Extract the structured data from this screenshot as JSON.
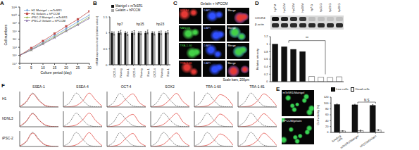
{
  "chart_data": [
    {
      "panel": "A",
      "type": "line",
      "x_label": "Culture period (day)",
      "y_label": "Cell numbers",
      "log": "y",
      "legend": "upper left",
      "x": [
        0,
        5,
        10,
        15,
        20,
        25,
        30
      ],
      "xlim": [
        0,
        30
      ],
      "xticks": [
        0,
        5,
        10,
        15,
        20,
        25,
        30
      ],
      "ylim": [
        10000,
        100000000000
      ],
      "yticks": [
        {
          "value": 10000,
          "label": "10⁴"
        },
        {
          "value": 100000,
          "label": "10⁵"
        },
        {
          "value": 1000000,
          "label": "10⁶"
        },
        {
          "value": 10000000,
          "label": "10⁷"
        },
        {
          "value": 100000000,
          "label": "10⁸"
        },
        {
          "value": 1000000000,
          "label": "10⁹"
        },
        {
          "value": 10000000000,
          "label": "10¹⁰"
        },
        {
          "value": 100000000000,
          "label": "10¹¹"
        }
      ],
      "series": [
        {
          "name": "H1 Matrigel + mTeSR1",
          "color": "#6f9fd8",
          "marker": "diamond",
          "values": [
            100000,
            600000,
            4000000,
            30000000,
            200000000,
            1500000000,
            10000000000
          ]
        },
        {
          "name": "H1 Gelatin + hPCCM",
          "color": "#c0504d",
          "marker": "square",
          "values": [
            100000,
            800000,
            6000000,
            50000000,
            400000000,
            3000000000,
            30000000000
          ]
        },
        {
          "name": "iPSC-2 Matrigel + mTeSR1",
          "color": "#9bbb59",
          "marker": "triangle",
          "values": [
            100000,
            500000,
            3000000,
            20000000,
            120000000,
            800000000,
            6000000000
          ]
        },
        {
          "name": "iPSC-2 Gelatin + hPCCM",
          "color": "#8064a2",
          "marker": "cross",
          "values": [
            100000,
            450000,
            2500000,
            15000000,
            100000000,
            600000000,
            4000000000
          ]
        }
      ]
    },
    {
      "panel": "B",
      "type": "bar",
      "y_label": "mRNA expression level (relative values)",
      "legend": "upper left",
      "categories": [
        "OCT-4",
        "Nanog",
        "Rex-1",
        "OCT-4",
        "Nanog",
        "Rex-1",
        "OCT-4",
        "Nanog",
        "Rex-1"
      ],
      "group_labels": [
        "hp7",
        "hp15",
        "hp23"
      ],
      "ylim": [
        0,
        1.5
      ],
      "yticks": [
        0,
        0.5,
        1,
        1.5
      ],
      "series": [
        {
          "name": "Matrigel + mTeSR1",
          "color": "#111111",
          "values": [
            1,
            1,
            1,
            1,
            1,
            1,
            1,
            1,
            1
          ],
          "errors": [
            0.04,
            0.05,
            0.04,
            0.05,
            0.04,
            0.05,
            0.04,
            0.05,
            0.04
          ]
        },
        {
          "name": "Gelatin + hPCCM",
          "color": "#a6a6a6",
          "values": [
            0.98,
            1.02,
            0.97,
            1.01,
            0.99,
            1.03,
            0.98,
            1,
            1.02
          ],
          "errors": [
            0.05,
            0.06,
            0.05,
            0.06,
            0.05,
            0.06,
            0.05,
            0.06,
            0.05
          ]
        }
      ]
    },
    {
      "panel": "D",
      "type": "bar",
      "y_label": "Relative intensity",
      "tick_labels": "y",
      "categories": [
        "hp7 M",
        "hp15 M",
        "hp23 M",
        "hp30 M",
        "hp7 G",
        "hp15 G",
        "hp23 G",
        "hp30 G"
      ],
      "values": [
        1,
        0.93,
        0.86,
        0.8,
        0.14,
        0.12,
        0.11,
        0.13
      ],
      "colors": [
        "#111111",
        "#111111",
        "#111111",
        "#111111",
        "#ffffff",
        "#ffffff",
        "#ffffff",
        "#ffffff"
      ],
      "ylim": [
        0,
        1.2
      ],
      "yticks": [
        0,
        0.2,
        0.4,
        0.6,
        0.8,
        1,
        1.2
      ],
      "annotations": [
        "**"
      ]
    },
    {
      "panel": "E",
      "type": "bar",
      "y_label": "Cell viability (%)",
      "legend": "upper left",
      "categories": [
        "Seeding cells",
        "mTeSR1/Matrigel",
        "hPCCM/Gelatin"
      ],
      "ylim": [
        0,
        120
      ],
      "yticks": [
        0,
        20,
        40,
        60,
        80,
        100,
        120
      ],
      "annotations": [
        "N.S"
      ],
      "series": [
        {
          "name": "Live cells",
          "color": "#111111",
          "values": [
            95,
            94,
            92
          ],
          "errors": [
            2,
            2,
            3
          ]
        },
        {
          "name": "Dead cells",
          "color": "#ffffff",
          "values": [
            5,
            6,
            8
          ],
          "errors": [
            1,
            2,
            2
          ]
        }
      ]
    },
    {
      "panel": "F",
      "type": "histogram_grid",
      "tick_labels": false,
      "columns": [
        "SSEA-1",
        "SSEA-4",
        "OCT-4",
        "SOX2",
        "TRA-1-60",
        "TRA-1-81"
      ],
      "x": [
        0,
        1,
        2,
        3,
        4,
        5,
        6
      ],
      "xlim": [
        0,
        6
      ],
      "ylim": [
        0,
        100
      ],
      "series": [
        {
          "color": "#555555",
          "line_style": "dashed"
        },
        {
          "color": "#e0302a",
          "line_style": "solid"
        }
      ],
      "rows": [
        {
          "label": "H1",
          "cells": [
            [
              [
                2,
                30,
                90,
                45,
                8,
                1,
                0
              ],
              [
                3,
                35,
                85,
                40,
                10,
                2,
                0
              ]
            ],
            [
              [
                2,
                30,
                90,
                45,
                8,
                1,
                0
              ],
              [
                0,
                2,
                10,
                40,
                90,
                45,
                5
              ]
            ],
            [
              [
                2,
                28,
                88,
                42,
                8,
                1,
                0
              ],
              [
                0,
                3,
                15,
                55,
                85,
                30,
                3
              ]
            ],
            [
              [
                2,
                30,
                90,
                45,
                8,
                1,
                0
              ],
              [
                0,
                3,
                14,
                50,
                88,
                35,
                4
              ]
            ],
            [
              [
                2,
                30,
                90,
                45,
                8,
                1,
                0
              ],
              [
                0,
                2,
                8,
                35,
                80,
                60,
                8
              ]
            ],
            [
              [
                2,
                30,
                90,
                45,
                8,
                1,
                0
              ],
              [
                0,
                2,
                9,
                38,
                85,
                55,
                6
              ]
            ]
          ]
        },
        {
          "label": "hDNL3",
          "cells": [
            [
              [
                2,
                32,
                88,
                44,
                9,
                1,
                0
              ],
              [
                3,
                36,
                84,
                42,
                11,
                2,
                0
              ]
            ],
            [
              [
                2,
                32,
                88,
                44,
                9,
                1,
                0
              ],
              [
                0,
                3,
                12,
                45,
                88,
                40,
                4
              ]
            ],
            [
              [
                2,
                30,
                86,
                44,
                9,
                1,
                0
              ],
              [
                0,
                4,
                18,
                58,
                80,
                28,
                3
              ]
            ],
            [
              [
                2,
                32,
                88,
                44,
                9,
                1,
                0
              ],
              [
                0,
                3,
                16,
                52,
                86,
                32,
                4
              ]
            ],
            [
              [
                2,
                32,
                88,
                44,
                9,
                1,
                0
              ],
              [
                0,
                2,
                10,
                38,
                82,
                55,
                7
              ]
            ],
            [
              [
                2,
                32,
                88,
                44,
                9,
                1,
                0
              ],
              [
                0,
                2,
                11,
                40,
                84,
                50,
                6
              ]
            ]
          ]
        },
        {
          "label": "iPSC-2",
          "cells": [
            [
              [
                2,
                29,
                91,
                46,
                8,
                1,
                0
              ],
              [
                3,
                33,
                86,
                41,
                10,
                2,
                0
              ]
            ],
            [
              [
                2,
                29,
                91,
                46,
                8,
                1,
                0
              ],
              [
                0,
                2,
                11,
                42,
                89,
                43,
                5
              ]
            ],
            [
              [
                2,
                27,
                89,
                43,
                8,
                1,
                0
              ],
              [
                0,
                3,
                16,
                56,
                84,
                29,
                3
              ]
            ],
            [
              [
                2,
                29,
                91,
                46,
                8,
                1,
                0
              ],
              [
                0,
                3,
                15,
                51,
                87,
                34,
                4
              ]
            ],
            [
              [
                2,
                29,
                91,
                46,
                8,
                1,
                0
              ],
              [
                0,
                2,
                9,
                36,
                81,
                58,
                8
              ]
            ],
            [
              [
                2,
                29,
                91,
                46,
                8,
                1,
                0
              ],
              [
                0,
                2,
                10,
                39,
                86,
                53,
                6
              ]
            ]
          ]
        }
      ]
    }
  ],
  "panel_C": {
    "panel": "C",
    "title": "Gelatin + hPCCM",
    "rows": [
      {
        "label": "SSEA4",
        "color": "#e53935"
      },
      {
        "label": "NANOG",
        "color": "#43d047"
      },
      {
        "label": "TRA-1-60",
        "color": "#43d047"
      },
      {
        "label": "TRA-1-81",
        "color": "#e53935"
      }
    ],
    "columns": [
      "DAPI",
      "Merge"
    ],
    "dapi_color": "#3050ff",
    "scale_bar": "Scale bars, 200μm"
  },
  "blot_D": {
    "rows": [
      "CXCR4",
      "β-actin"
    ]
  },
  "images_E": {
    "labels": [
      "mTeSR1/Matrigel",
      "hPCCM/gelatin"
    ],
    "color": "#39d353"
  }
}
